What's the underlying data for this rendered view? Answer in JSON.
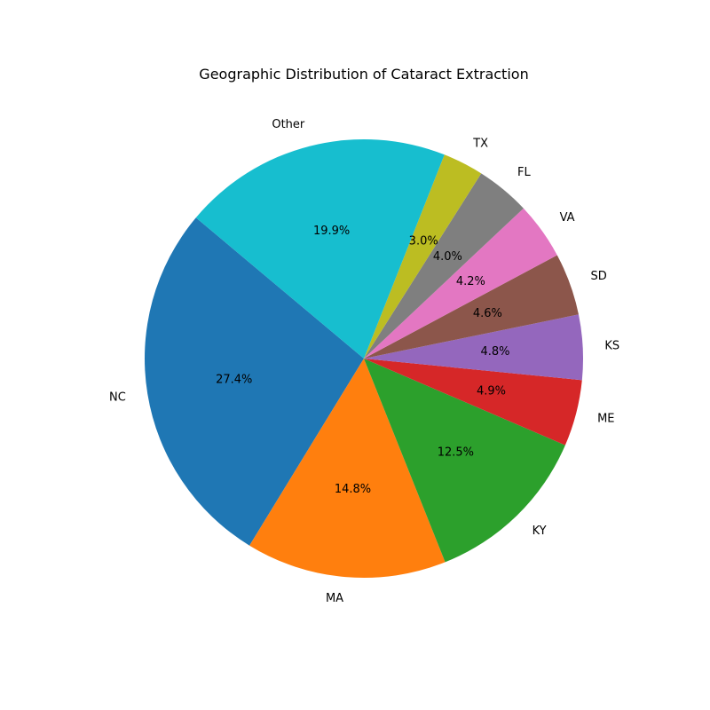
{
  "chart_data": {
    "type": "pie",
    "title": "Geographic Distribution of Cataract Extraction",
    "categories": [
      "NC",
      "MA",
      "KY",
      "ME",
      "KS",
      "SD",
      "VA",
      "FL",
      "TX",
      "Other"
    ],
    "values": [
      27.4,
      14.8,
      12.5,
      4.9,
      4.8,
      4.6,
      4.2,
      4.0,
      3.0,
      19.9
    ],
    "value_labels": [
      "27.4%",
      "14.8%",
      "12.5%",
      "4.9%",
      "4.8%",
      "4.6%",
      "4.2%",
      "4.0%",
      "3.0%",
      "19.9%"
    ],
    "colors": [
      "#1f77b4",
      "#ff7f0e",
      "#2ca02c",
      "#d62728",
      "#9467bd",
      "#8c564b",
      "#e377c2",
      "#7f7f7f",
      "#bcbd22",
      "#17becf"
    ],
    "start_angle_deg": 140,
    "direction": "counterclockwise",
    "legend": "none"
  }
}
